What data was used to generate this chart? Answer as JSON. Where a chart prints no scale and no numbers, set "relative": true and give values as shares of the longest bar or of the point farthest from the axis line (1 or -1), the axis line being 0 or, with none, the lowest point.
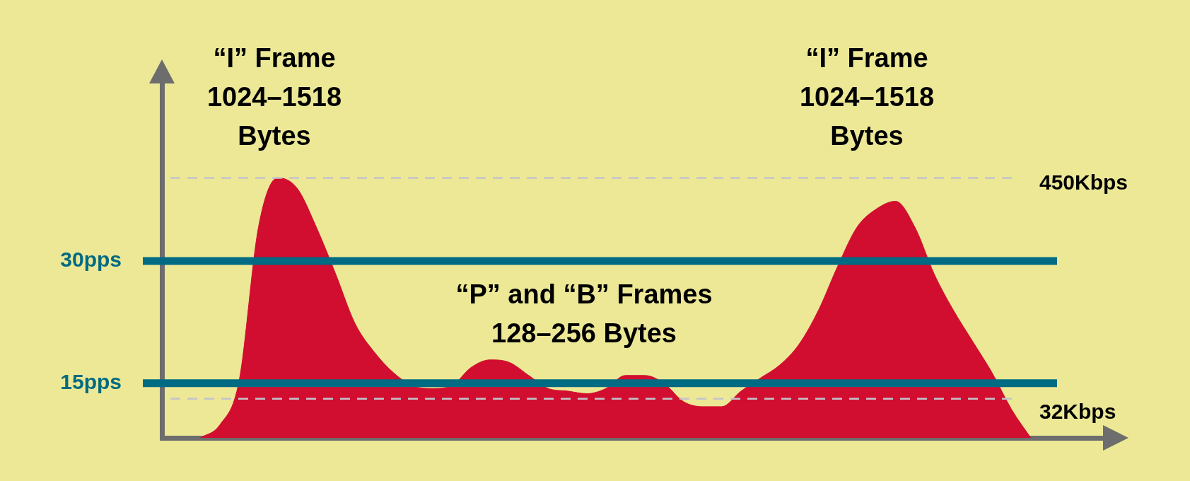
{
  "chart_data": {
    "type": "area",
    "relative": true,
    "color": "#d10e2f",
    "categories": [
      null,
      null,
      null,
      null,
      null,
      null,
      null,
      null,
      null,
      null,
      null,
      null,
      null,
      null,
      null,
      null,
      null,
      null,
      null,
      null,
      null,
      null,
      null,
      null,
      null,
      null,
      null,
      null,
      null,
      null,
      null,
      null,
      null,
      null,
      null,
      null,
      null,
      null,
      null,
      null,
      null,
      null,
      null,
      null,
      null,
      null,
      null,
      null,
      null,
      null
    ],
    "values": [
      null,
      null,
      0,
      0.05,
      0.22,
      0.81,
      1,
      0.96,
      0.81,
      0.63,
      0.44,
      0.33,
      0.25,
      0.2,
      0.19,
      0.2,
      0.27,
      0.3,
      0.29,
      0.24,
      0.19,
      0.18,
      0.17,
      0.19,
      0.24,
      0.24,
      0.21,
      0.14,
      0.12,
      0.12,
      0.18,
      0.23,
      0.28,
      0.36,
      0.49,
      0.66,
      0.81,
      0.88,
      0.91,
      0.81,
      0.63,
      0.49,
      0.37,
      0.25,
      0.11,
      0,
      null,
      null,
      null,
      null
    ],
    "ref_lines": [
      {
        "axis": "y",
        "value": 1,
        "label": "450Kbps",
        "color": "#c4c4cc",
        "line_style": "dashed"
      },
      {
        "axis": "y",
        "value": 0.68,
        "label": "30pps",
        "color": "#006b82",
        "line_style": "solid"
      },
      {
        "axis": "y",
        "value": 0.21,
        "label": "15pps",
        "color": "#006b82",
        "line_style": "solid"
      },
      {
        "axis": "y",
        "value": 0.15,
        "label": "32Kbps",
        "color": "#c4c4cc",
        "line_style": "dashed"
      }
    ],
    "annotations": [
      "“I” Frame\n1024–1518\nBytes",
      "“I” Frame\n1024–1518\nBytes",
      "“P” and “B” Frames\n128–256 Bytes"
    ],
    "grid": false,
    "legend": false
  }
}
